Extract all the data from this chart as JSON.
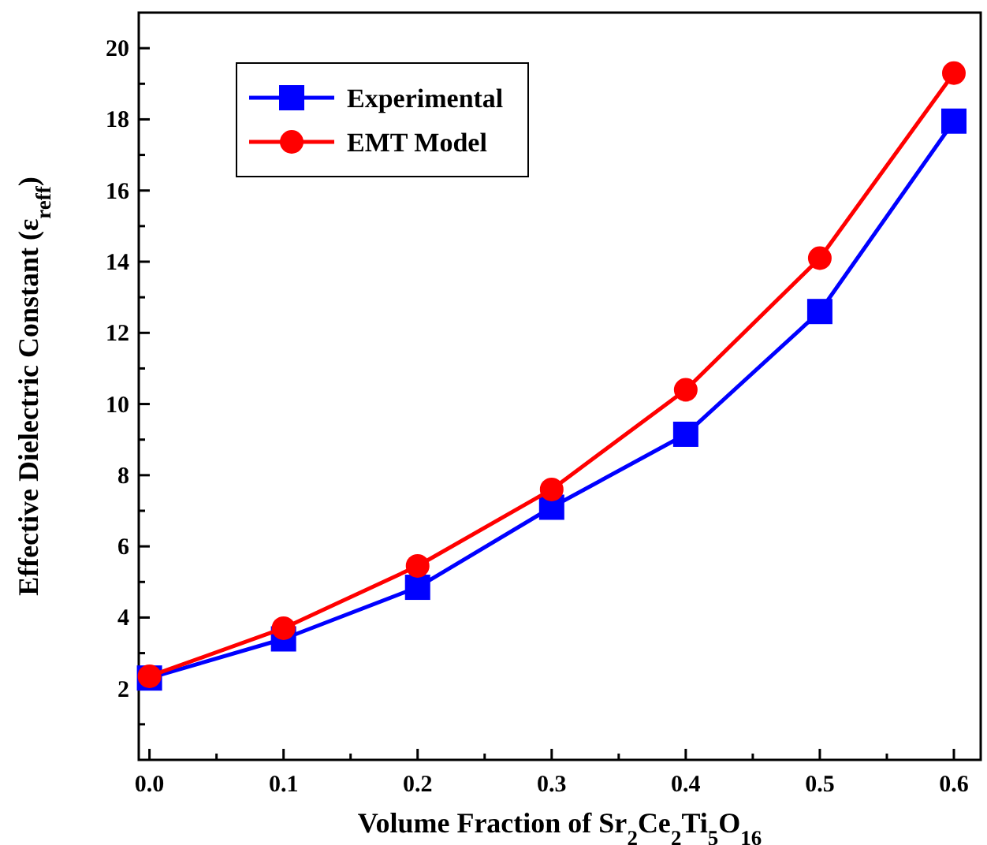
{
  "chart_data": {
    "type": "line",
    "xlabel": "Volume Fraction of Sr$_{2}$Ce$_{2}$Ti$_{5}$O$_{16}$",
    "ylabel": "Effective Dielectric Constant (ε$_{reff}$)",
    "x": [
      0,
      0.1,
      0.2,
      0.3,
      0.4,
      0.5,
      0.6
    ],
    "series": [
      {
        "name": "Experimental",
        "color": "#0000ff",
        "marker": "square",
        "values": [
          2.3,
          3.4,
          4.85,
          7.1,
          9.15,
          12.6,
          17.95
        ]
      },
      {
        "name": "EMT Model",
        "color": "#ff0000",
        "marker": "circle",
        "values": [
          2.35,
          3.7,
          5.45,
          7.6,
          10.4,
          14.1,
          19.3
        ]
      }
    ],
    "xlim": [
      -0.008,
      0.62
    ],
    "ylim": [
      0,
      21
    ],
    "xticks": [
      {
        "value": 0,
        "label": "0.0"
      },
      {
        "value": 0.05,
        "label": null
      },
      {
        "value": 0.1,
        "label": "0.1"
      },
      {
        "value": 0.15,
        "label": null
      },
      {
        "value": 0.2,
        "label": "0.2"
      },
      {
        "value": 0.25,
        "label": null
      },
      {
        "value": 0.3,
        "label": "0.3"
      },
      {
        "value": 0.35,
        "label": null
      },
      {
        "value": 0.4,
        "label": "0.4"
      },
      {
        "value": 0.45,
        "label": null
      },
      {
        "value": 0.5,
        "label": "0.5"
      },
      {
        "value": 0.55,
        "label": null
      },
      {
        "value": 0.6,
        "label": "0.6"
      }
    ],
    "yticks": [
      {
        "value": 1,
        "label": null
      },
      2,
      {
        "value": 3,
        "label": null
      },
      4,
      {
        "value": 5,
        "label": null
      },
      6,
      {
        "value": 7,
        "label": null
      },
      8,
      {
        "value": 9,
        "label": null
      },
      10,
      {
        "value": 11,
        "label": null
      },
      12,
      {
        "value": 13,
        "label": null
      },
      14,
      {
        "value": 15,
        "label": null
      },
      16,
      {
        "value": 17,
        "label": null
      },
      18,
      {
        "value": 19,
        "label": null
      },
      20
    ],
    "legend": "top left",
    "grid": false,
    "line_style": "solid"
  }
}
